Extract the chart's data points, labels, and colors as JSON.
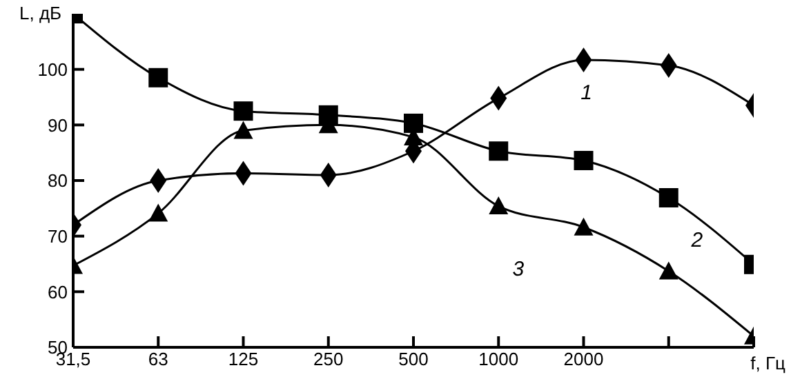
{
  "chart_data": {
    "type": "line",
    "xlabel": "f, Гц",
    "ylabel": "L, дБ",
    "categories": [
      "31,5",
      "63",
      "125",
      "250",
      "500",
      "1000",
      "2000",
      null,
      null
    ],
    "ylim": [
      50,
      110
    ],
    "yticks": [
      50,
      60,
      70,
      80,
      90,
      100
    ],
    "line_style": "solid",
    "series": [
      {
        "name": "1",
        "color": "#000000",
        "marker": "diamond",
        "values": [
          72,
          80,
          81.3,
          81,
          85.3,
          94.8,
          101.7,
          100.7,
          93.5
        ]
      },
      {
        "name": "2",
        "color": "#000000",
        "marker": "square",
        "values": [
          110,
          98.5,
          92.5,
          91.8,
          90.3,
          85.3,
          83.6,
          76.9,
          64.9
        ]
      },
      {
        "name": "3",
        "color": "#000000",
        "marker": "triangle",
        "values": [
          64.7,
          74.1,
          89,
          90,
          87.8,
          75.4,
          71.6,
          63.7,
          52
        ]
      }
    ]
  }
}
